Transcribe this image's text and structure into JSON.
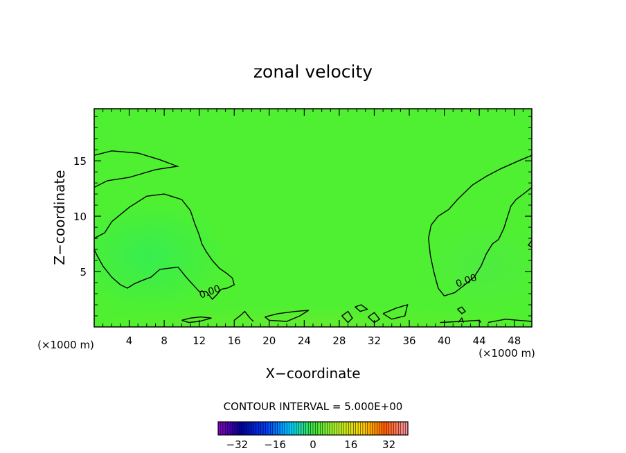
{
  "chart_data": {
    "type": "heatmap",
    "title": "zonal velocity",
    "xlabel": "X−coordinate",
    "ylabel": "Z−coordinate",
    "x_unit_left": "(×1000 m)",
    "x_unit_right": "(×1000 m)",
    "xlim": [
      0,
      50
    ],
    "ylim": [
      0,
      19.7
    ],
    "x_ticks": [
      4,
      8,
      12,
      16,
      20,
      24,
      28,
      32,
      36,
      40,
      44,
      48
    ],
    "x_tick_labels": [
      "4",
      "8",
      "12",
      "16",
      "20",
      "24",
      "28",
      "32",
      "36",
      "40",
      "44",
      "48"
    ],
    "y_ticks": [
      5,
      10,
      15
    ],
    "y_tick_labels": [
      "5",
      "10",
      "15"
    ],
    "contour_interval_label": "CONTOUR INTERVAL = 5.000E+00",
    "contour_label": "0.00",
    "colorbar": {
      "min": -40,
      "max": 40,
      "ticks": [
        -32,
        -16,
        0,
        16,
        32
      ],
      "tick_labels": [
        "−32",
        "−16",
        "0",
        "16",
        "32"
      ]
    },
    "field_description": "values near 0 everywhere; weak negative (westward) cells near x=4-14 and x=40-50 at z=2-12",
    "zero_contours": [
      [
        [
          0,
          15.5
        ],
        [
          2,
          15.9
        ],
        [
          5,
          15.7
        ],
        [
          7.5,
          15.1
        ],
        [
          9.5,
          14.5
        ],
        [
          7,
          14.2
        ],
        [
          4,
          13.5
        ],
        [
          1.5,
          13.2
        ],
        [
          0,
          12.6
        ]
      ],
      [
        [
          0,
          8
        ],
        [
          1.2,
          8.5
        ],
        [
          2,
          9.5
        ],
        [
          4,
          10.8
        ],
        [
          6,
          11.8
        ],
        [
          8,
          12
        ],
        [
          10,
          11.5
        ],
        [
          11,
          10.5
        ],
        [
          11.5,
          9.3
        ],
        [
          12,
          8.3
        ],
        [
          12.3,
          7.5
        ],
        [
          12.8,
          6.8
        ],
        [
          13.5,
          6
        ],
        [
          14.3,
          5.3
        ],
        [
          15.2,
          4.8
        ],
        [
          15.8,
          4.4
        ],
        [
          16,
          3.8
        ],
        [
          15.2,
          3.5
        ],
        [
          14.5,
          3.4
        ],
        [
          14,
          2.9
        ],
        [
          13.5,
          2.5
        ],
        [
          12.8,
          3.2
        ],
        [
          12,
          3.2
        ],
        [
          11.3,
          3.8
        ],
        [
          10.5,
          4.5
        ],
        [
          9.6,
          5.4
        ],
        [
          8.5,
          5.3
        ],
        [
          7.5,
          5.2
        ],
        [
          6.5,
          4.5
        ],
        [
          5.5,
          4.2
        ],
        [
          4.6,
          3.9
        ],
        [
          3.8,
          3.5
        ],
        [
          3,
          3.8
        ],
        [
          2,
          4.5
        ],
        [
          1,
          5.5
        ],
        [
          0.3,
          6.5
        ],
        [
          0,
          7
        ]
      ],
      [
        [
          50,
          15.5
        ],
        [
          48.5,
          15
        ],
        [
          46.5,
          14.3
        ],
        [
          44.8,
          13.6
        ],
        [
          43.2,
          12.8
        ],
        [
          41.5,
          11.5
        ],
        [
          40.5,
          10.6
        ],
        [
          39.3,
          10
        ],
        [
          38.5,
          9.2
        ],
        [
          38.2,
          8
        ],
        [
          38.4,
          6.5
        ],
        [
          38.8,
          5
        ],
        [
          39.3,
          3.5
        ],
        [
          40,
          2.8
        ],
        [
          41.2,
          3.1
        ],
        [
          42.5,
          3.9
        ],
        [
          43.4,
          4.5
        ],
        [
          44.2,
          5.5
        ],
        [
          44.8,
          6.6
        ],
        [
          45.5,
          7.5
        ],
        [
          46.2,
          7.9
        ],
        [
          46.8,
          8.9
        ],
        [
          47.2,
          9.9
        ],
        [
          47.6,
          10.9
        ],
        [
          48.2,
          11.5
        ],
        [
          49.2,
          12.1
        ],
        [
          50,
          12.6
        ]
      ],
      [
        [
          50,
          7.8
        ],
        [
          49.6,
          7.4
        ],
        [
          50,
          7.2
        ]
      ],
      [
        [
          10,
          0.6
        ],
        [
          11,
          0.8
        ],
        [
          12.2,
          0.9
        ],
        [
          13.4,
          0.8
        ],
        [
          12,
          0.5
        ],
        [
          10.8,
          0.4
        ],
        [
          10,
          0.6
        ]
      ],
      [
        [
          16,
          0.6
        ],
        [
          16.8,
          1.1
        ],
        [
          17.2,
          1.4
        ],
        [
          17.8,
          0.8
        ],
        [
          18.2,
          0.5
        ]
      ],
      [
        [
          19.5,
          0.9
        ],
        [
          21,
          1.2
        ],
        [
          23,
          1.4
        ],
        [
          24.5,
          1.5
        ],
        [
          23.5,
          1
        ],
        [
          22,
          0.5
        ],
        [
          20,
          0.6
        ],
        [
          19.5,
          0.9
        ]
      ],
      [
        [
          28.3,
          1
        ],
        [
          29,
          1.4
        ],
        [
          29.5,
          0.8
        ],
        [
          29,
          0.4
        ],
        [
          28.3,
          1
        ]
      ],
      [
        [
          29.8,
          1.8
        ],
        [
          30.5,
          2
        ],
        [
          31.2,
          1.6
        ],
        [
          30.4,
          1.4
        ],
        [
          29.8,
          1.8
        ]
      ],
      [
        [
          31.3,
          0.9
        ],
        [
          32,
          1.3
        ],
        [
          32.6,
          0.7
        ],
        [
          32,
          0.4
        ],
        [
          31.3,
          0.9
        ]
      ],
      [
        [
          33,
          1.2
        ],
        [
          34.5,
          1.7
        ],
        [
          35.8,
          2
        ],
        [
          35.5,
          1
        ],
        [
          34,
          0.7
        ],
        [
          33,
          1.2
        ]
      ],
      [
        [
          39.5,
          0.4
        ],
        [
          42,
          0.5
        ],
        [
          44,
          0.6
        ],
        [
          44.2,
          0.4
        ]
      ],
      [
        [
          41.5,
          1.6
        ],
        [
          42,
          1.8
        ],
        [
          42.4,
          1.4
        ],
        [
          42,
          1.2
        ],
        [
          41.5,
          1.6
        ]
      ],
      [
        [
          41.6,
          0.4
        ],
        [
          42,
          0.8
        ],
        [
          42.2,
          0.4
        ]
      ],
      [
        [
          45,
          0.4
        ],
        [
          47,
          0.7
        ],
        [
          48.5,
          0.6
        ],
        [
          50,
          0.5
        ]
      ]
    ],
    "contour_labels_at": [
      [
        13.2,
        3.2
      ],
      [
        42.5,
        4.2
      ]
    ]
  }
}
